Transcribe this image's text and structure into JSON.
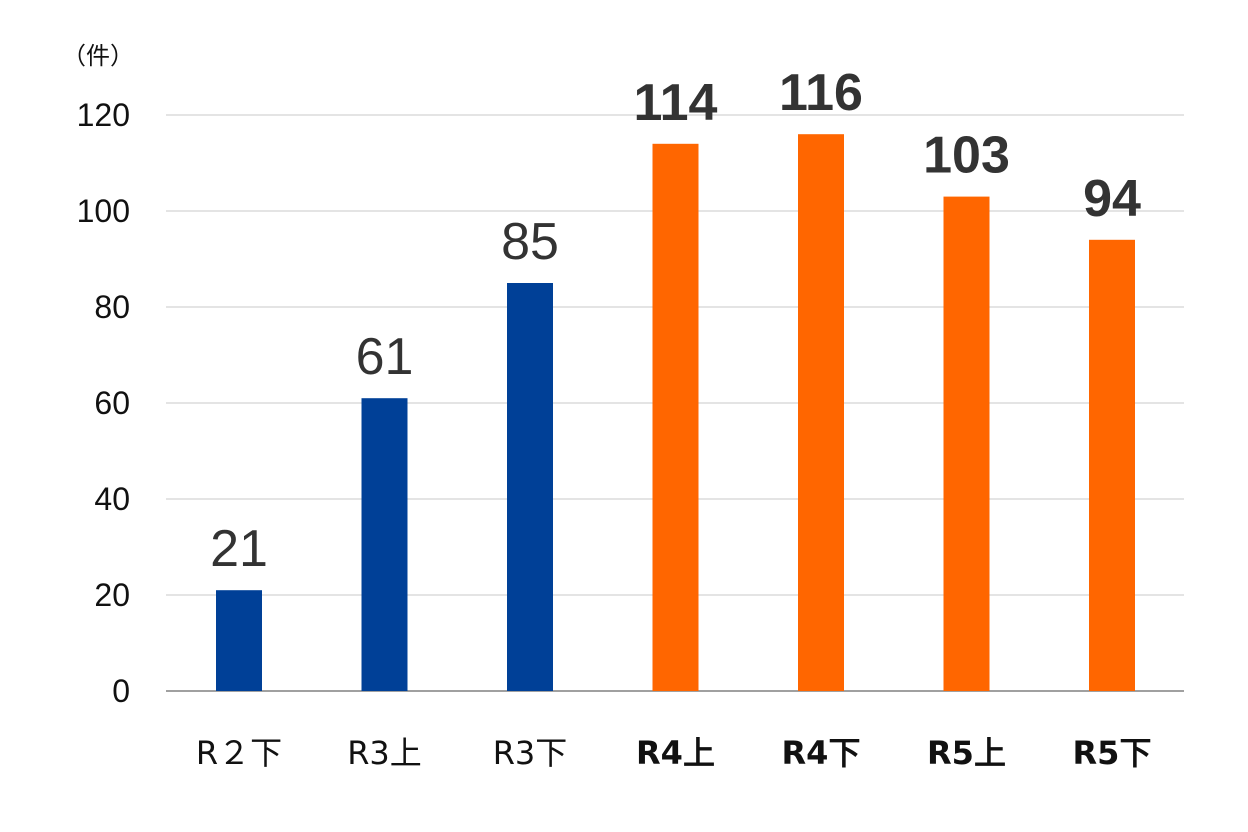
{
  "chart_data": {
    "type": "bar",
    "unit_label": "（件）",
    "categories": [
      "R２下",
      "R3上",
      "R3下",
      "R4上",
      "R4下",
      "R5上",
      "R5下"
    ],
    "values": [
      21,
      61,
      85,
      114,
      116,
      103,
      94
    ],
    "bar_colors": [
      "#004097",
      "#004097",
      "#004097",
      "#ff6600",
      "#ff6600",
      "#ff6600",
      "#ff6600"
    ],
    "bold": [
      false,
      false,
      false,
      true,
      true,
      true,
      true
    ],
    "ylim": [
      0,
      120
    ],
    "yticks": [
      0,
      20,
      40,
      60,
      80,
      100,
      120
    ],
    "grid": true,
    "title": "",
    "xlabel": "",
    "ylabel": ""
  }
}
